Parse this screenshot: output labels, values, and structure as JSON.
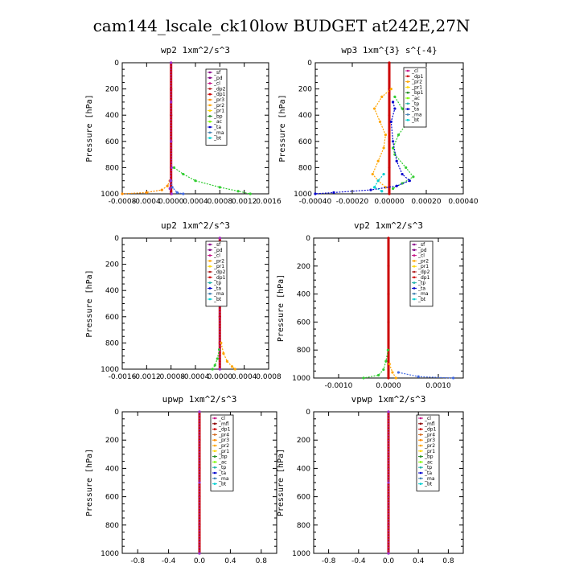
{
  "figure": {
    "title": "cam144_lscale_ck10low  BUDGET at242E,27N"
  },
  "chart_data": [
    {
      "type": "line",
      "title": "wp2   1xm^2/s^3",
      "ylabel": "Pressure [hPa]",
      "xlim": [
        -0.0008,
        0.0016
      ],
      "ylim": [
        1000,
        0
      ],
      "xticks": [
        -0.0008,
        -0.0004,
        0.0,
        0.0004,
        0.0008,
        0.0012,
        0.0016
      ],
      "xtick_labels": [
        "-0.0008",
        "-0.0004",
        "0.0000",
        "0.0004",
        "0.0008",
        "0.0012",
        "0.0016"
      ],
      "yticks": [
        0,
        200,
        400,
        600,
        800,
        1000
      ],
      "legend": [
        "_sf",
        "_pd",
        "_cl",
        "_dp2",
        "_dp1",
        "_pr3",
        "_pr2",
        "_pr1",
        "_bp",
        "_ac",
        "_ta",
        "_ma",
        "_bt"
      ],
      "series": [
        {
          "name": "_sf",
          "color": "#cc0000",
          "pressure": [
            0,
            200,
            400,
            600,
            800,
            900,
            980,
            1000
          ],
          "values": [
            0,
            0,
            0,
            0,
            0,
            0,
            0,
            0
          ]
        },
        {
          "name": "_pr1",
          "color": "#ff8c00",
          "pressure": [
            900,
            940,
            970,
            990,
            1000
          ],
          "values": [
            -2e-05,
            -6e-05,
            -0.00015,
            -0.0004,
            -0.0008
          ]
        },
        {
          "name": "_bp",
          "color": "#32cd32",
          "pressure": [
            800,
            850,
            900,
            950,
            980,
            1000
          ],
          "values": [
            5e-05,
            0.0002,
            0.0004,
            0.0008,
            0.0011,
            0.0013
          ]
        },
        {
          "name": "_ta",
          "color": "#4169e1",
          "pressure": [
            900,
            950,
            990,
            1000
          ],
          "values": [
            0.0,
            2e-05,
            0.0001,
            0.0002
          ]
        },
        {
          "name": "_bt",
          "color": "#9932cc",
          "pressure": [
            0,
            300,
            600,
            800,
            900,
            960,
            1000
          ],
          "values": [
            0,
            0,
            0,
            1e-05,
            -1e-05,
            -2e-05,
            1e-05
          ]
        }
      ]
    },
    {
      "type": "line",
      "title": "wp3   1xm^{3} s^{-4}",
      "ylabel": "Pressure [hPa]",
      "xlim": [
        -0.0004,
        0.0004
      ],
      "ylim": [
        1000,
        0
      ],
      "xticks": [
        -0.0004,
        -0.0002,
        0.0,
        0.0002,
        0.0004
      ],
      "xtick_labels": [
        "-0.00040",
        "-0.00020",
        "0.00000",
        "0.00020",
        "0.00040"
      ],
      "yticks": [
        0,
        200,
        400,
        600,
        800,
        1000
      ],
      "legend": [
        "_cl",
        "_dp1",
        "_pr2",
        "_pr1",
        "_bp1",
        "_ac",
        "_tp",
        "_ta",
        "_ma",
        "_bt"
      ],
      "series": [
        {
          "name": "_cl",
          "color": "#cc0000",
          "pressure": [
            0,
            200,
            400,
            600,
            800,
            1000
          ],
          "values": [
            0,
            0,
            0,
            0,
            0,
            0
          ]
        },
        {
          "name": "_pr1",
          "color": "#ffa500",
          "pressure": [
            200,
            260,
            350,
            450,
            550,
            650,
            750,
            850,
            900,
            950
          ],
          "values": [
            1e-05,
            -4e-05,
            -8e-05,
            -5e-05,
            -2e-05,
            -3e-05,
            -6e-05,
            -9e-05,
            -6e-05,
            -2e-05
          ]
        },
        {
          "name": "_ac",
          "color": "#32cd32",
          "pressure": [
            260,
            350,
            450,
            550,
            650,
            700,
            800,
            870,
            920,
            960
          ],
          "values": [
            3e-05,
            7e-05,
            0.0001,
            5e-05,
            2e-05,
            3e-05,
            9e-05,
            0.00013,
            7e-05,
            2e-05
          ]
        },
        {
          "name": "_ta",
          "color": "#0000cd",
          "pressure": [
            300,
            350,
            450,
            600,
            750,
            850,
            900,
            940,
            970,
            990,
            1000
          ],
          "values": [
            2e-05,
            3e-05,
            1e-05,
            2e-05,
            4e-05,
            7e-05,
            0.00011,
            4e-05,
            -0.0001,
            -0.0003,
            -0.0004
          ]
        },
        {
          "name": "_bt",
          "color": "#00ced1",
          "pressure": [
            850,
            900,
            950,
            980
          ],
          "values": [
            -3e-05,
            -6e-05,
            -8e-05,
            -4e-05
          ]
        }
      ]
    },
    {
      "type": "line",
      "title": "up2   1xm^2/s^3",
      "ylabel": "Pressure [hPa]",
      "xlim": [
        -0.0016,
        0.0008
      ],
      "ylim": [
        1000,
        0
      ],
      "xticks": [
        -0.0016,
        -0.0012,
        -0.0008,
        -0.0004,
        0.0,
        0.0004,
        0.0008
      ],
      "xtick_labels": [
        "-0.0016",
        "-0.0012",
        "-0.0008",
        "-0.0004",
        "0.0000",
        "0.0004",
        "0.0008"
      ],
      "yticks": [
        0,
        200,
        400,
        600,
        800,
        1000
      ],
      "legend": [
        "_sf",
        "_pd",
        "_cl",
        "_pr2",
        "_pr1",
        "_dp2",
        "_dp1",
        "_tp",
        "_ta",
        "_ma",
        "_bt"
      ],
      "series": [
        {
          "name": "_sf",
          "color": "#cc0000",
          "pressure": [
            0,
            200,
            400,
            600,
            800,
            1000
          ],
          "values": [
            0,
            0,
            0,
            0,
            0,
            0
          ]
        },
        {
          "name": "_pr1",
          "color": "#ffa500",
          "pressure": [
            800,
            880,
            940,
            980,
            1000
          ],
          "values": [
            2e-05,
            6e-05,
            0.00012,
            0.0002,
            0.00025
          ]
        },
        {
          "name": "_dp1",
          "color": "#32cd32",
          "pressure": [
            850,
            920,
            970,
            1000
          ],
          "values": [
            -1e-05,
            -4e-05,
            -8e-05,
            -0.00012
          ]
        },
        {
          "name": "_bt",
          "color": "#9932cc",
          "pressure": [
            0,
            500,
            1000
          ],
          "values": [
            0,
            0,
            0
          ]
        }
      ]
    },
    {
      "type": "line",
      "title": "vp2   1xm^2/s^3",
      "ylabel": "Pressure [hPa]",
      "xlim": [
        -0.0015,
        0.0015
      ],
      "ylim": [
        1000,
        0
      ],
      "xticks": [
        -0.001,
        0.0,
        0.001
      ],
      "xtick_labels": [
        "-0.0010",
        "0.0000",
        "0.0010"
      ],
      "yticks": [
        0,
        200,
        400,
        600,
        800,
        1000
      ],
      "legend": [
        "_sf",
        "_pd",
        "_cl",
        "_pr2",
        "_pr1",
        "_dp2",
        "_dp1",
        "_tp",
        "_ta",
        "_ma",
        "_bt"
      ],
      "series": [
        {
          "name": "_sf",
          "color": "#cc0000",
          "pressure": [
            0,
            200,
            400,
            600,
            800,
            1000
          ],
          "values": [
            0,
            0,
            0,
            0,
            0,
            0
          ]
        },
        {
          "name": "_dp1",
          "color": "#32cd32",
          "pressure": [
            800,
            880,
            940,
            980,
            1000
          ],
          "values": [
            -1e-05,
            -5e-05,
            -0.0001,
            -0.0002,
            -0.0005
          ]
        },
        {
          "name": "_pr1",
          "color": "#ffa500",
          "pressure": [
            900,
            960,
            1000
          ],
          "values": [
            2e-05,
            8e-05,
            0.00015
          ]
        },
        {
          "name": "_ta",
          "color": "#4169e1",
          "pressure": [
            960,
            990,
            1000
          ],
          "values": [
            0.0002,
            0.0006,
            0.0013
          ]
        }
      ]
    },
    {
      "type": "line",
      "title": "upwp   1xm^2/s^3",
      "ylabel": "Pressure [hPa]",
      "xlim": [
        -1.0,
        1.0
      ],
      "ylim": [
        1000,
        0
      ],
      "xticks": [
        -0.8,
        -0.4,
        0.0,
        0.4,
        0.8
      ],
      "xtick_labels": [
        "-0.8",
        "-0.4",
        "0.0",
        "0.4",
        "0.8"
      ],
      "yticks": [
        0,
        200,
        400,
        600,
        800,
        1000
      ],
      "legend": [
        "_cl",
        "_mfl",
        "_dp1",
        "_pr4",
        "_pr3",
        "_pr2",
        "_pr1",
        "_bp",
        "_ac",
        "_tp",
        "_ta",
        "_ma",
        "_bt"
      ],
      "series": [
        {
          "name": "_cl",
          "color": "#cc0000",
          "pressure": [
            0,
            200,
            400,
            600,
            800,
            1000
          ],
          "values": [
            0,
            0,
            0,
            0,
            0,
            0
          ]
        },
        {
          "name": "_bt",
          "color": "#9932cc",
          "pressure": [
            0,
            500,
            1000
          ],
          "values": [
            0,
            0,
            0
          ]
        }
      ]
    },
    {
      "type": "line",
      "title": "vpwp   1xm^2/s^3",
      "ylabel": "Pressure [hPa]",
      "xlim": [
        -1.0,
        1.0
      ],
      "ylim": [
        1000,
        0
      ],
      "xticks": [
        -0.8,
        -0.4,
        0.0,
        0.4,
        0.8
      ],
      "xtick_labels": [
        "-0.8",
        "-0.4",
        "0.0",
        "0.4",
        "0.8"
      ],
      "yticks": [
        0,
        200,
        400,
        600,
        800,
        1000
      ],
      "legend": [
        "_cl",
        "_mfl",
        "_dp1",
        "_pr4",
        "_pr3",
        "_pr2",
        "_pr1",
        "_bp",
        "_ac",
        "_tp",
        "_ta",
        "_ma",
        "_bt"
      ],
      "series": [
        {
          "name": "_cl",
          "color": "#cc0000",
          "pressure": [
            0,
            200,
            400,
            600,
            800,
            1000
          ],
          "values": [
            0,
            0,
            0,
            0,
            0,
            0
          ]
        },
        {
          "name": "_bt",
          "color": "#9932cc",
          "pressure": [
            0,
            500,
            1000
          ],
          "values": [
            0,
            0,
            0
          ]
        }
      ]
    }
  ],
  "legend_colors": {
    "_sf": "#8b008b",
    "_pd": "#800080",
    "_cl": "#c71585",
    "_mfl": "#8b0000",
    "_dp2": "#b22222",
    "_dp1": "#cc0000",
    "_pr4": "#d2691e",
    "_pr3": "#ff8c00",
    "_pr2": "#ffa500",
    "_pr1": "#ffd700",
    "_bp": "#228b22",
    "_bp1": "#228b22",
    "_ac": "#7cfc00",
    "_tp": "#20b2aa",
    "_ta": "#0000cd",
    "_ma": "#4682b4",
    "_bt": "#00ced1"
  }
}
